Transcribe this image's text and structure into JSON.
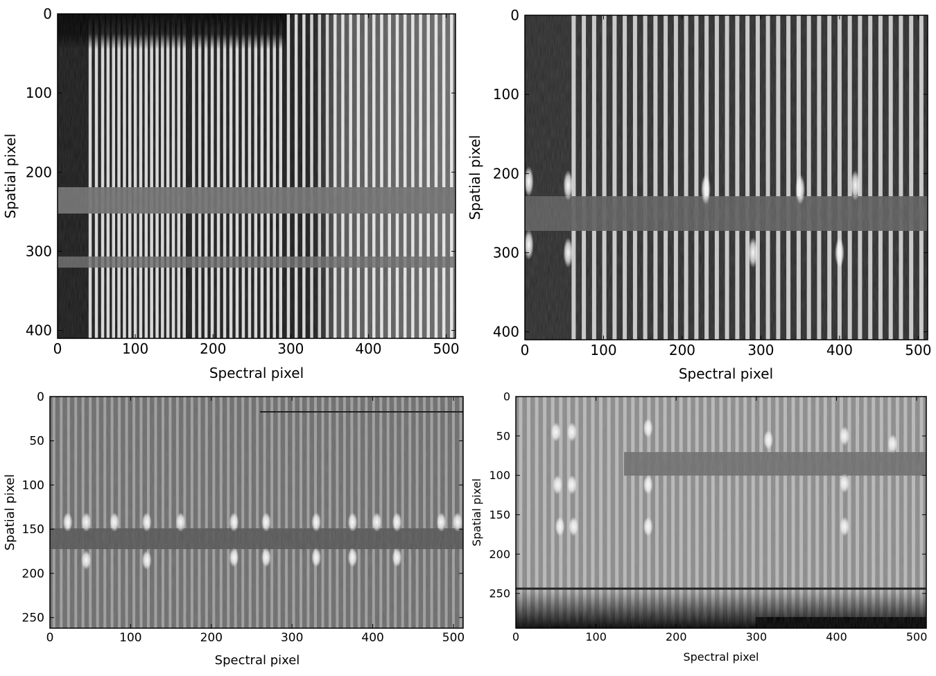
{
  "chart_data": [
    {
      "type": "heatmap",
      "xlabel": "Spectral pixel",
      "ylabel": "Spatial pixel",
      "xlim": [
        0,
        512
      ],
      "ylim": [
        410,
        0
      ],
      "xticks": [
        "0",
        "100",
        "200",
        "300",
        "400",
        "500"
      ],
      "yticks": [
        "0",
        "100",
        "200",
        "300",
        "400"
      ],
      "colormap": "gray",
      "stripe_columns": [
        42,
        50,
        58,
        65,
        72,
        79,
        86,
        93,
        100,
        107,
        114,
        121,
        128,
        135,
        142,
        149,
        156,
        163,
        175,
        183,
        191,
        199,
        207,
        215,
        223,
        231,
        239,
        247,
        255,
        263,
        271,
        279,
        287,
        297,
        307,
        317,
        327,
        337,
        347,
        357,
        367,
        377,
        387,
        397,
        407,
        417,
        427,
        437,
        447,
        457,
        467,
        477,
        487,
        497,
        507
      ]
    },
    {
      "type": "heatmap",
      "xlabel": "Spectral pixel",
      "ylabel": "Spatial pixel",
      "xlim": [
        0,
        512
      ],
      "ylim": [
        410,
        0
      ],
      "xticks": [
        "0",
        "100",
        "200",
        "300",
        "400",
        "500"
      ],
      "yticks": [
        "0",
        "100",
        "200",
        "300",
        "400"
      ],
      "colormap": "gray",
      "stripe_columns": [
        62,
        75,
        88,
        101,
        114,
        127,
        140,
        153,
        166,
        179,
        192,
        205,
        218,
        231,
        244,
        257,
        270,
        283,
        296,
        309,
        322,
        335,
        348,
        361,
        374,
        387,
        400,
        413,
        426,
        439,
        452,
        465,
        478,
        491,
        504
      ]
    },
    {
      "type": "heatmap",
      "xlabel": "Spectral pixel",
      "ylabel": "Spatial pixel",
      "xlim": [
        0,
        512
      ],
      "ylim": [
        262,
        0
      ],
      "xticks": [
        "0",
        "100",
        "200",
        "300",
        "400",
        "500"
      ],
      "yticks": [
        "0",
        "50",
        "100",
        "150",
        "200",
        "250"
      ],
      "colormap": "gray",
      "stripe_columns": [
        5,
        14,
        23,
        32,
        41,
        50,
        59,
        68,
        77,
        86,
        95,
        104,
        113,
        122,
        131,
        140,
        149,
        158,
        167,
        176,
        185,
        194,
        203,
        212,
        221,
        230,
        239,
        248,
        257,
        266,
        275,
        284,
        293,
        302,
        311,
        320,
        329,
        338,
        347,
        356,
        365,
        374,
        383,
        392,
        401,
        410,
        419,
        428,
        437,
        446,
        455,
        464,
        473,
        482,
        491,
        500,
        509
      ]
    },
    {
      "type": "heatmap",
      "xlabel": "Spectral pixel",
      "ylabel": "Spatial pixel",
      "xlim": [
        0,
        512
      ],
      "ylim": [
        294,
        0
      ],
      "xticks": [
        "0",
        "100",
        "200",
        "300",
        "400",
        "500"
      ],
      "yticks": [
        "0",
        "50",
        "100",
        "150",
        "200",
        "250"
      ],
      "colormap": "gray",
      "stripe_columns": [
        6,
        16,
        26,
        36,
        46,
        56,
        66,
        76,
        86,
        96,
        106,
        116,
        126,
        136,
        146,
        156,
        166,
        176,
        186,
        196,
        206,
        216,
        226,
        236,
        246,
        256,
        266,
        276,
        286,
        296,
        306,
        316,
        326,
        336,
        346,
        356,
        366,
        376,
        386,
        396,
        406,
        416,
        426,
        436,
        446,
        456,
        466,
        476,
        486,
        496,
        506
      ]
    }
  ]
}
